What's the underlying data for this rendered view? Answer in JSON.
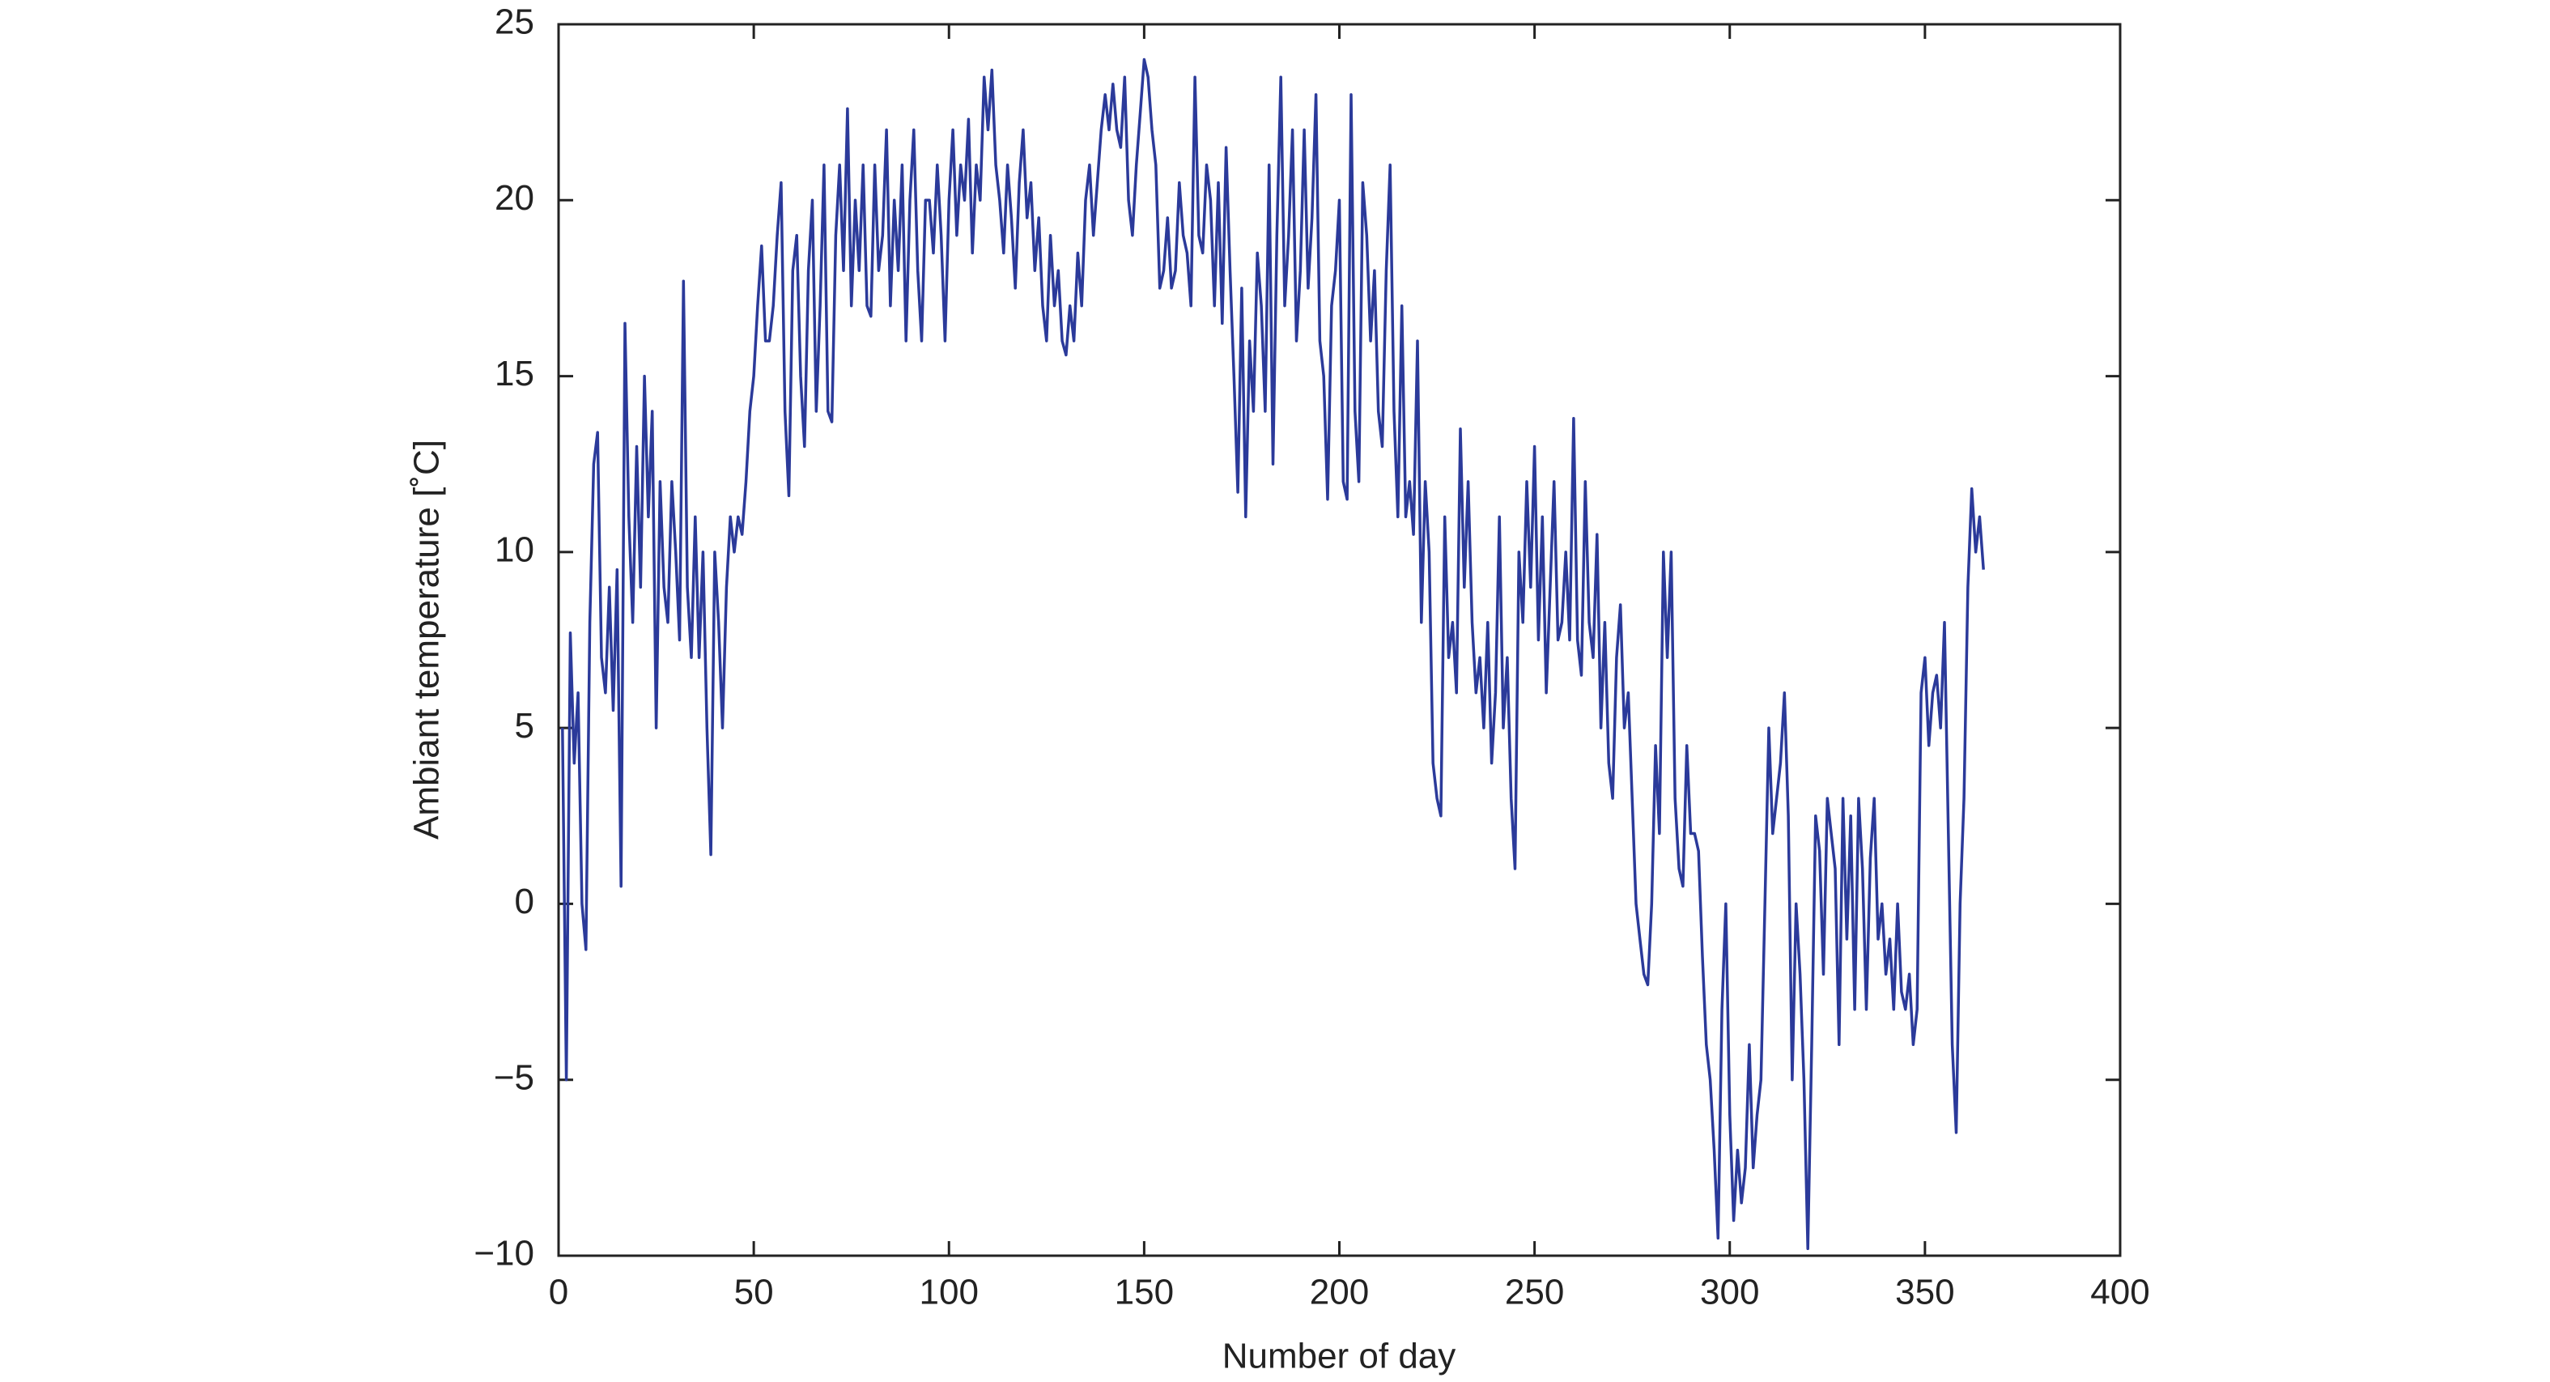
{
  "chart_data": {
    "type": "line",
    "xlabel": "Number of day",
    "ylabel": "Ambiant temperature [˚C]",
    "color": "#2b3a9a",
    "xlim": [
      0,
      400
    ],
    "xticks": [
      0,
      50,
      100,
      150,
      200,
      250,
      300,
      350,
      400
    ],
    "ylim": [
      -10,
      25
    ],
    "yticks": [
      {
        "value": -10,
        "label": "−10"
      },
      {
        "value": -5,
        "label": "−5"
      },
      0,
      5,
      10,
      15,
      20,
      25
    ],
    "x": [
      1,
      2,
      3,
      4,
      5,
      6,
      7,
      8,
      9,
      10,
      11,
      12,
      13,
      14,
      15,
      16,
      17,
      18,
      19,
      20,
      21,
      22,
      23,
      24,
      25,
      26,
      27,
      28,
      29,
      30,
      31,
      32,
      33,
      34,
      35,
      36,
      37,
      38,
      39,
      40,
      41,
      42,
      43,
      44,
      45,
      46,
      47,
      48,
      49,
      50,
      51,
      52,
      53,
      54,
      55,
      56,
      57,
      58,
      59,
      60,
      61,
      62,
      63,
      64,
      65,
      66,
      67,
      68,
      69,
      70,
      71,
      72,
      73,
      74,
      75,
      76,
      77,
      78,
      79,
      80,
      81,
      82,
      83,
      84,
      85,
      86,
      87,
      88,
      89,
      90,
      91,
      92,
      93,
      94,
      95,
      96,
      97,
      98,
      99,
      100,
      101,
      102,
      103,
      104,
      105,
      106,
      107,
      108,
      109,
      110,
      111,
      112,
      113,
      114,
      115,
      116,
      117,
      118,
      119,
      120,
      121,
      122,
      123,
      124,
      125,
      126,
      127,
      128,
      129,
      130,
      131,
      132,
      133,
      134,
      135,
      136,
      137,
      138,
      139,
      140,
      141,
      142,
      143,
      144,
      145,
      146,
      147,
      148,
      149,
      150,
      151,
      152,
      153,
      154,
      155,
      156,
      157,
      158,
      159,
      160,
      161,
      162,
      163,
      164,
      165,
      166,
      167,
      168,
      169,
      170,
      171,
      172,
      173,
      174,
      175,
      176,
      177,
      178,
      179,
      180,
      181,
      182,
      183,
      184,
      185,
      186,
      187,
      188,
      189,
      190,
      191,
      192,
      193,
      194,
      195,
      196,
      197,
      198,
      199,
      200,
      201,
      202,
      203,
      204,
      205,
      206,
      207,
      208,
      209,
      210,
      211,
      212,
      213,
      214,
      215,
      216,
      217,
      218,
      219,
      220,
      221,
      222,
      223,
      224,
      225,
      226,
      227,
      228,
      229,
      230,
      231,
      232,
      233,
      234,
      235,
      236,
      237,
      238,
      239,
      240,
      241,
      242,
      243,
      244,
      245,
      246,
      247,
      248,
      249,
      250,
      251,
      252,
      253,
      254,
      255,
      256,
      257,
      258,
      259,
      260,
      261,
      262,
      263,
      264,
      265,
      266,
      267,
      268,
      269,
      270,
      271,
      272,
      273,
      274,
      275,
      276,
      277,
      278,
      279,
      280,
      281,
      282,
      283,
      284,
      285,
      286,
      287,
      288,
      289,
      290,
      291,
      292,
      293,
      294,
      295,
      296,
      297,
      298,
      299,
      300,
      301,
      302,
      303,
      304,
      305,
      306,
      307,
      308,
      309,
      310,
      311,
      312,
      313,
      314,
      315,
      316,
      317,
      318,
      319,
      320,
      321,
      322,
      323,
      324,
      325,
      326,
      327,
      328,
      329,
      330,
      331,
      332,
      333,
      334,
      335,
      336,
      337,
      338,
      339,
      340,
      341,
      342,
      343,
      344,
      345,
      346,
      347,
      348,
      349,
      350,
      351,
      352,
      353,
      354,
      355,
      356,
      357,
      358,
      359,
      360,
      361,
      362,
      363,
      364,
      365
    ],
    "values": [
      5,
      -5,
      7.7,
      4,
      6,
      0,
      -1.3,
      8,
      12.5,
      13.4,
      7,
      6,
      9,
      5.5,
      9.5,
      0.5,
      16.5,
      11,
      8,
      13,
      9,
      15,
      11,
      14,
      5,
      12,
      9,
      8,
      12,
      10,
      7.5,
      17.7,
      9,
      7,
      11,
      7,
      10,
      5,
      1.4,
      10,
      8,
      5,
      9,
      11,
      10,
      11,
      10.5,
      12,
      14,
      15,
      17,
      18.7,
      16,
      16,
      17,
      19,
      20.5,
      14,
      11.6,
      18,
      19,
      15,
      13,
      18,
      20,
      14,
      17,
      21,
      14,
      13.7,
      19,
      21,
      18,
      22.6,
      17,
      20,
      18,
      21,
      17,
      16.7,
      21,
      18,
      19,
      22,
      17,
      20,
      18,
      21,
      16,
      20,
      22,
      18,
      16,
      20,
      20,
      18.5,
      21,
      19,
      16,
      20,
      22,
      19,
      21,
      20,
      22.3,
      18.5,
      21,
      20,
      23.5,
      22,
      23.7,
      21,
      20,
      18.5,
      21,
      19.5,
      17.5,
      20.5,
      22,
      19.5,
      20.5,
      18,
      19.5,
      17,
      16,
      19,
      17,
      18,
      16,
      15.6,
      17,
      16,
      18.5,
      17,
      20,
      21,
      19,
      20.5,
      22,
      23,
      22,
      23.3,
      22,
      21.5,
      23.5,
      20,
      19,
      21,
      22.5,
      24,
      23.5,
      22,
      21,
      17.5,
      18,
      19.5,
      17.5,
      18,
      20.5,
      19,
      18.5,
      17,
      23.5,
      19,
      18.5,
      21,
      20,
      17,
      20.5,
      16.5,
      21.5,
      18,
      15,
      11.7,
      17.5,
      11,
      16,
      14,
      18.5,
      17,
      14,
      21,
      12.5,
      19,
      23.5,
      17,
      19,
      22,
      16,
      18,
      22,
      17.5,
      19.5,
      23,
      16,
      15,
      11.5,
      17,
      18,
      20,
      12,
      11.5,
      23,
      14,
      12,
      20.5,
      19,
      16,
      18,
      14,
      13,
      18,
      21,
      14,
      11,
      17,
      11,
      12,
      10.5,
      16,
      8,
      12,
      10,
      4,
      3,
      2.5,
      11,
      7,
      8,
      6,
      13.5,
      9,
      12,
      8,
      6,
      7,
      5,
      8,
      4,
      6,
      11,
      5,
      7,
      3,
      1,
      10,
      8,
      12,
      9,
      13,
      7.5,
      11,
      6,
      9,
      12,
      7.5,
      8,
      10,
      7.5,
      13.8,
      7.5,
      6.5,
      12,
      8,
      7,
      10.5,
      5,
      8,
      4,
      3,
      7,
      8.5,
      5,
      6,
      3,
      0,
      -1,
      -2,
      -2.3,
      0,
      4.5,
      2,
      10,
      7,
      10,
      3,
      1,
      0.5,
      4.5,
      2,
      2,
      1.5,
      -1.5,
      -4,
      -5,
      -7,
      -9.5,
      -3,
      0,
      -6,
      -9,
      -7,
      -8.5,
      -7.5,
      -4,
      -7.5,
      -6,
      -5,
      0,
      5,
      2,
      3,
      4,
      6,
      2.5,
      -5,
      0,
      -2,
      -5,
      -9.8,
      -4,
      2.5,
      1.5,
      -2,
      3,
      2,
      1,
      -4,
      3,
      -1,
      2.5,
      -3,
      3,
      1,
      -3,
      1.3,
      3,
      -1,
      0,
      -2,
      -1,
      -3,
      0,
      -2.5,
      -3,
      -2,
      -4,
      -3,
      6,
      7,
      4.5,
      6,
      6.5,
      5,
      8,
      2,
      -4,
      -6.5,
      0,
      3,
      9,
      11.8,
      10,
      11,
      9.5
    ]
  }
}
